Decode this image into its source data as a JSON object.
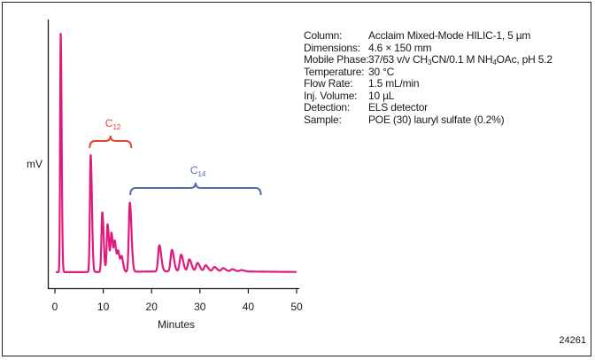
{
  "chart_data": {
    "type": "line",
    "title": "",
    "xlabel": "Minutes",
    "ylabel": "mV",
    "xlim": [
      0,
      50
    ],
    "x_ticks": [
      0,
      10,
      20,
      30,
      40,
      50
    ],
    "grid": false,
    "legend": "none",
    "color": "#e0197d",
    "peaks": [
      {
        "t": 1.2,
        "h": 1.0
      },
      {
        "t": 7.4,
        "h": 0.49
      },
      {
        "t": 9.8,
        "h": 0.25
      },
      {
        "t": 10.9,
        "h": 0.2
      },
      {
        "t": 11.7,
        "h": 0.16
      },
      {
        "t": 12.4,
        "h": 0.12
      },
      {
        "t": 13.1,
        "h": 0.08
      },
      {
        "t": 13.8,
        "h": 0.06
      },
      {
        "t": 15.5,
        "h": 0.29
      },
      {
        "t": 21.6,
        "h": 0.11
      },
      {
        "t": 24.2,
        "h": 0.09
      },
      {
        "t": 26.1,
        "h": 0.07
      },
      {
        "t": 27.8,
        "h": 0.05
      },
      {
        "t": 29.5,
        "h": 0.035
      },
      {
        "t": 31.2,
        "h": 0.025
      },
      {
        "t": 33.0,
        "h": 0.018
      },
      {
        "t": 34.8,
        "h": 0.013
      },
      {
        "t": 36.7,
        "h": 0.009
      },
      {
        "t": 38.6,
        "h": 0.006
      }
    ],
    "annotations": [
      {
        "label_main": "C",
        "label_sub": "12",
        "from": 7.2,
        "to": 15.8,
        "color": "#e8432e"
      },
      {
        "label_main": "C",
        "label_sub": "14",
        "from": 15.6,
        "to": 42.6,
        "color": "#4a6fb0"
      }
    ]
  },
  "conditions": [
    {
      "key": "Column:",
      "parts": [
        {
          "t": "Acclaim Mixed-Mode HILIC-1, 5 µm"
        }
      ]
    },
    {
      "key": "Dimensions:",
      "parts": [
        {
          "t": "4.6 × 150 mm"
        }
      ]
    },
    {
      "key": "Mobile Phase:",
      "parts": [
        {
          "t": "37/63 v/v CH"
        },
        {
          "t": "3",
          "sub": true
        },
        {
          "t": "CN/0.1 M NH"
        },
        {
          "t": "4",
          "sub": true
        },
        {
          "t": "OAc, pH 5.2"
        }
      ]
    },
    {
      "key": "Temperature:",
      "parts": [
        {
          "t": "30 °C"
        }
      ]
    },
    {
      "key": "Flow Rate:",
      "parts": [
        {
          "t": "1.5 mL/min"
        }
      ]
    },
    {
      "key": "Inj. Volume:",
      "parts": [
        {
          "t": "10 µL"
        }
      ]
    },
    {
      "key": "Detection:",
      "parts": [
        {
          "t": "ELS detector"
        }
      ]
    },
    {
      "key": "Sample:",
      "parts": [
        {
          "t": "POE (30) lauryl sulfate (0.2%)"
        }
      ]
    }
  ],
  "figure_id": "24261"
}
